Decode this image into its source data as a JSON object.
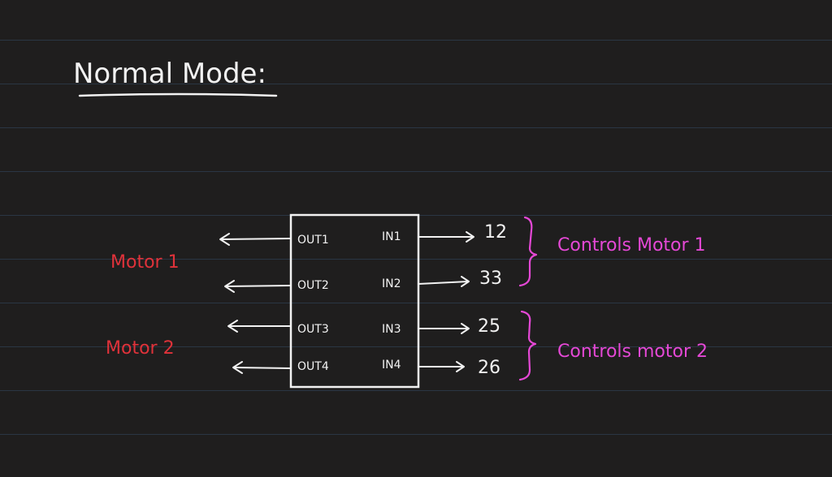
{
  "title": "Normal Mode:",
  "colors": {
    "background": "#1f1e1e",
    "ruled_line": "#2a3644",
    "ink_white": "#f2f2f2",
    "ink_red": "#e0323a",
    "ink_pink": "#e548d6"
  },
  "chip": {
    "outputs": [
      "OUT1",
      "OUT2",
      "OUT3",
      "OUT4"
    ],
    "inputs": [
      "IN1",
      "IN2",
      "IN3",
      "IN4"
    ]
  },
  "pins": [
    "12",
    "33",
    "25",
    "26"
  ],
  "motor_labels": [
    "Motor 1",
    "Motor 2"
  ],
  "brace_notes": [
    "Controls Motor 1",
    "Controls motor 2"
  ]
}
